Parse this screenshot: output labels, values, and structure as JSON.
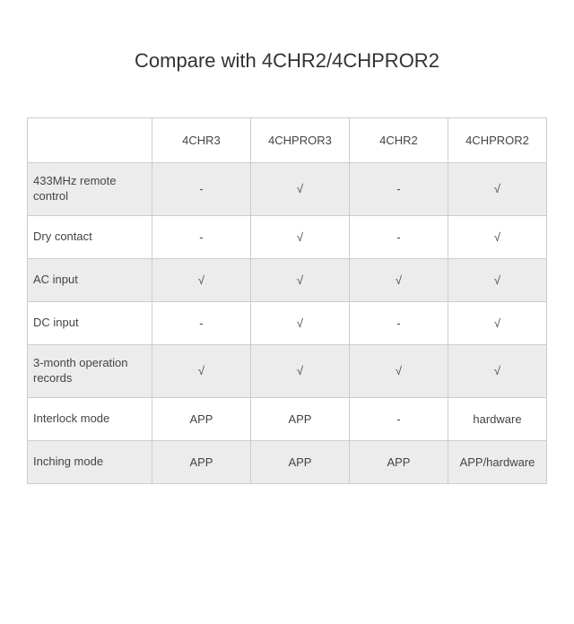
{
  "title": "Compare with 4CHR2/4CHPROR2",
  "table": {
    "columns": [
      "",
      "4CHR3",
      "4CHPROR3",
      "4CHR2",
      "4CHPROR2"
    ],
    "rows": [
      {
        "label": "433MHz remote control",
        "values": [
          "-",
          "√",
          "-",
          "√"
        ],
        "shaded": true
      },
      {
        "label": "Dry contact",
        "values": [
          "-",
          "√",
          "-",
          "√"
        ],
        "shaded": false
      },
      {
        "label": "AC input",
        "values": [
          "√",
          "√",
          "√",
          "√"
        ],
        "shaded": true
      },
      {
        "label": "DC input",
        "values": [
          "-",
          "√",
          "-",
          "√"
        ],
        "shaded": false
      },
      {
        "label": "3-month operation records",
        "values": [
          "√",
          "√",
          "√",
          "√"
        ],
        "shaded": true
      },
      {
        "label": "Interlock mode",
        "values": [
          "APP",
          "APP",
          "-",
          "hardware"
        ],
        "shaded": false
      },
      {
        "label": "Inching mode",
        "values": [
          "APP",
          "APP",
          "APP",
          "APP/hardware"
        ],
        "shaded": true
      }
    ]
  },
  "style": {
    "title_fontsize": 22,
    "cell_fontsize": 13,
    "border_color": "#cccccc",
    "shaded_bg": "#ececec",
    "white_bg": "#ffffff",
    "text_color": "#444444",
    "title_color": "#333333"
  }
}
